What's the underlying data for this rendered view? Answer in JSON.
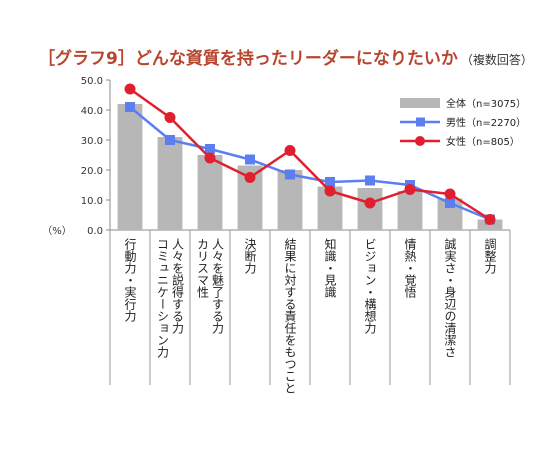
{
  "chart_data": {
    "type": "bar",
    "title": "［グラフ9］どんな資質を持ったリーダーになりたいか",
    "subtitle": "（複数回答）",
    "ylabel": "（%）",
    "ylim": [
      0,
      50
    ],
    "yticks": [
      "0.0",
      "10.0",
      "20.0",
      "30.0",
      "40.0",
      "50.0"
    ],
    "grid": false,
    "legend_position": "top-right",
    "categories": [
      [
        "行動力・実行力"
      ],
      [
        "人々を説得する力",
        "コミュニケーション力"
      ],
      [
        "人々を魅了する力",
        "カリスマ性"
      ],
      [
        "決断力"
      ],
      [
        "結果に対する責任をもつこと"
      ],
      [
        "知識・見識"
      ],
      [
        "ビジョン・構想力"
      ],
      [
        "情熱・覚悟"
      ],
      [
        "誠実さ・身辺の清潔さ"
      ],
      [
        "調整力"
      ]
    ],
    "series": [
      {
        "name": "全体（n=3075）",
        "kind": "bar",
        "color": "#b7b7b7",
        "values": [
          42,
          31,
          25,
          21.5,
          20,
          14.5,
          14,
          13,
          10.5,
          3.5
        ]
      },
      {
        "name": "男性（n=2270）",
        "kind": "line",
        "color": "#5b7ff0",
        "marker": "square",
        "values": [
          41,
          30,
          27,
          23.5,
          18.5,
          16,
          16.5,
          15,
          9,
          3.5
        ]
      },
      {
        "name": "女性（n=805）",
        "kind": "line",
        "color": "#e0202e",
        "marker": "circle",
        "values": [
          47,
          37.5,
          24,
          17.5,
          26.5,
          13,
          9,
          13.5,
          12,
          3.5
        ]
      }
    ]
  }
}
